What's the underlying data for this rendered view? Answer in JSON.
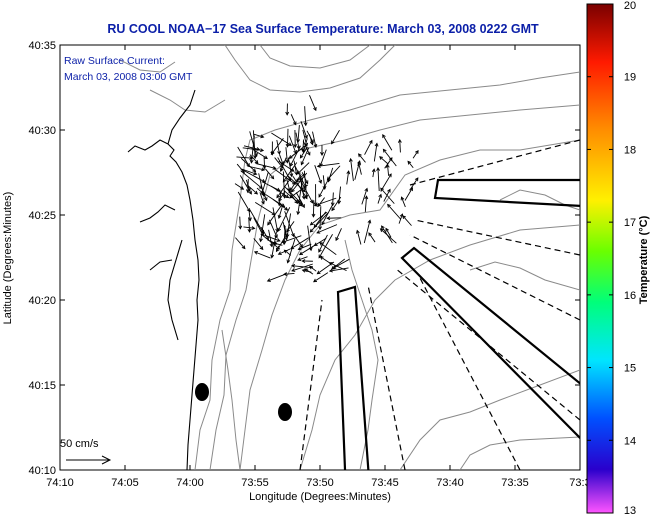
{
  "title": "RU COOL  NOAA−17  Sea Surface Temperature:  March 03, 2008 0222 GMT",
  "annotation": {
    "line1": "Raw Surface Current:",
    "line2": "March 03, 2008 03:00 GMT",
    "scale_label": "50 cm/s"
  },
  "axes": {
    "xlabel": "Longitude (Degrees:Minutes)",
    "ylabel": "Latitude (Degrees:Minutes)",
    "xticks": [
      "74:10",
      "74:05",
      "74:00",
      "73:55",
      "73:50",
      "73:45",
      "73:40",
      "73:35",
      "73:3"
    ],
    "yticks": [
      "40:35",
      "40:30",
      "40:25",
      "40:20",
      "40:15",
      "40:10"
    ]
  },
  "colorbar": {
    "title": "Temperature (°C)",
    "ticks": [
      "20",
      "19",
      "18",
      "17",
      "16",
      "15",
      "14",
      "13"
    ],
    "range": [
      13,
      20
    ],
    "stops": [
      {
        "v": 13.0,
        "c": "#ff55ff"
      },
      {
        "v": 13.6,
        "c": "#2a00cc"
      },
      {
        "v": 14.3,
        "c": "#0050ff"
      },
      {
        "v": 15.1,
        "c": "#00e5ff"
      },
      {
        "v": 15.9,
        "c": "#00ff7a"
      },
      {
        "v": 16.6,
        "c": "#6aff00"
      },
      {
        "v": 17.3,
        "c": "#fff000"
      },
      {
        "v": 18.3,
        "c": "#ff8a00"
      },
      {
        "v": 19.2,
        "c": "#ff1a00"
      },
      {
        "v": 20.0,
        "c": "#7a0000"
      }
    ]
  },
  "colors": {
    "title": "#0b1fa8",
    "coast": "#000000",
    "contour": "#8a8a8a",
    "vector": "#000000"
  }
}
